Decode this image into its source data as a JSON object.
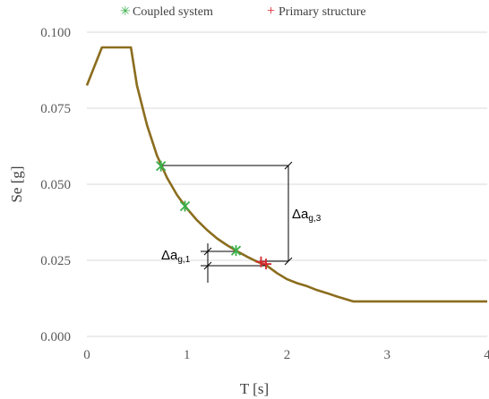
{
  "chart_data": {
    "type": "line",
    "xlabel": "T [s]",
    "ylabel": "Se [g]",
    "xlim": [
      0,
      4
    ],
    "ylim": [
      0,
      0.1
    ],
    "xticks": [
      0,
      1,
      2,
      3,
      4
    ],
    "xtick_labels": [
      "0",
      "1",
      "2",
      "3",
      "4"
    ],
    "yticks": [
      0,
      0.025,
      0.05,
      0.075,
      0.1
    ],
    "ytick_labels": [
      "0.000",
      "0.025",
      "0.050",
      "0.075",
      "0.100"
    ],
    "grid": "horizontal",
    "legend": "top",
    "colors": {
      "spectrum": "#8B6D1E",
      "coupled": "#3BAF4A",
      "primary": "#D7262E",
      "annotation": "#000000",
      "grid": "#D9D9D9"
    },
    "series": [
      {
        "x": [
          0,
          0.15,
          0.44,
          0.5,
          0.6,
          0.7,
          0.8,
          0.9,
          1.0,
          1.1,
          1.2,
          1.3,
          1.4,
          1.5,
          1.6,
          1.7,
          1.8,
          1.9,
          2.0,
          2.1,
          2.2,
          2.3,
          2.4,
          2.5,
          2.6,
          2.66,
          3.0,
          3.5,
          4.0
        ],
        "y": [
          0.0825,
          0.095,
          0.095,
          0.0825,
          0.0695,
          0.0595,
          0.0522,
          0.0465,
          0.042,
          0.0382,
          0.035,
          0.0322,
          0.03,
          0.028,
          0.0262,
          0.0246,
          0.0232,
          0.0208,
          0.0188,
          0.0175,
          0.0165,
          0.0152,
          0.0142,
          0.0131,
          0.0121,
          0.0115,
          0.0115,
          0.0115,
          0.0115
        ]
      }
    ],
    "markers": [
      {
        "name": "Coupled system",
        "symbol": "✳",
        "points": [
          [
            0.74,
            0.056
          ],
          [
            0.98,
            0.0428
          ],
          [
            1.49,
            0.0282
          ]
        ]
      },
      {
        "name": "Primary structure",
        "symbol": "+",
        "points": [
          [
            1.74,
            0.0245
          ],
          [
            1.79,
            0.0238
          ]
        ]
      }
    ],
    "annotations": [
      {
        "label": "Δa",
        "sub": "g,3"
      },
      {
        "label": "Δa",
        "sub": "g,1"
      }
    ]
  }
}
